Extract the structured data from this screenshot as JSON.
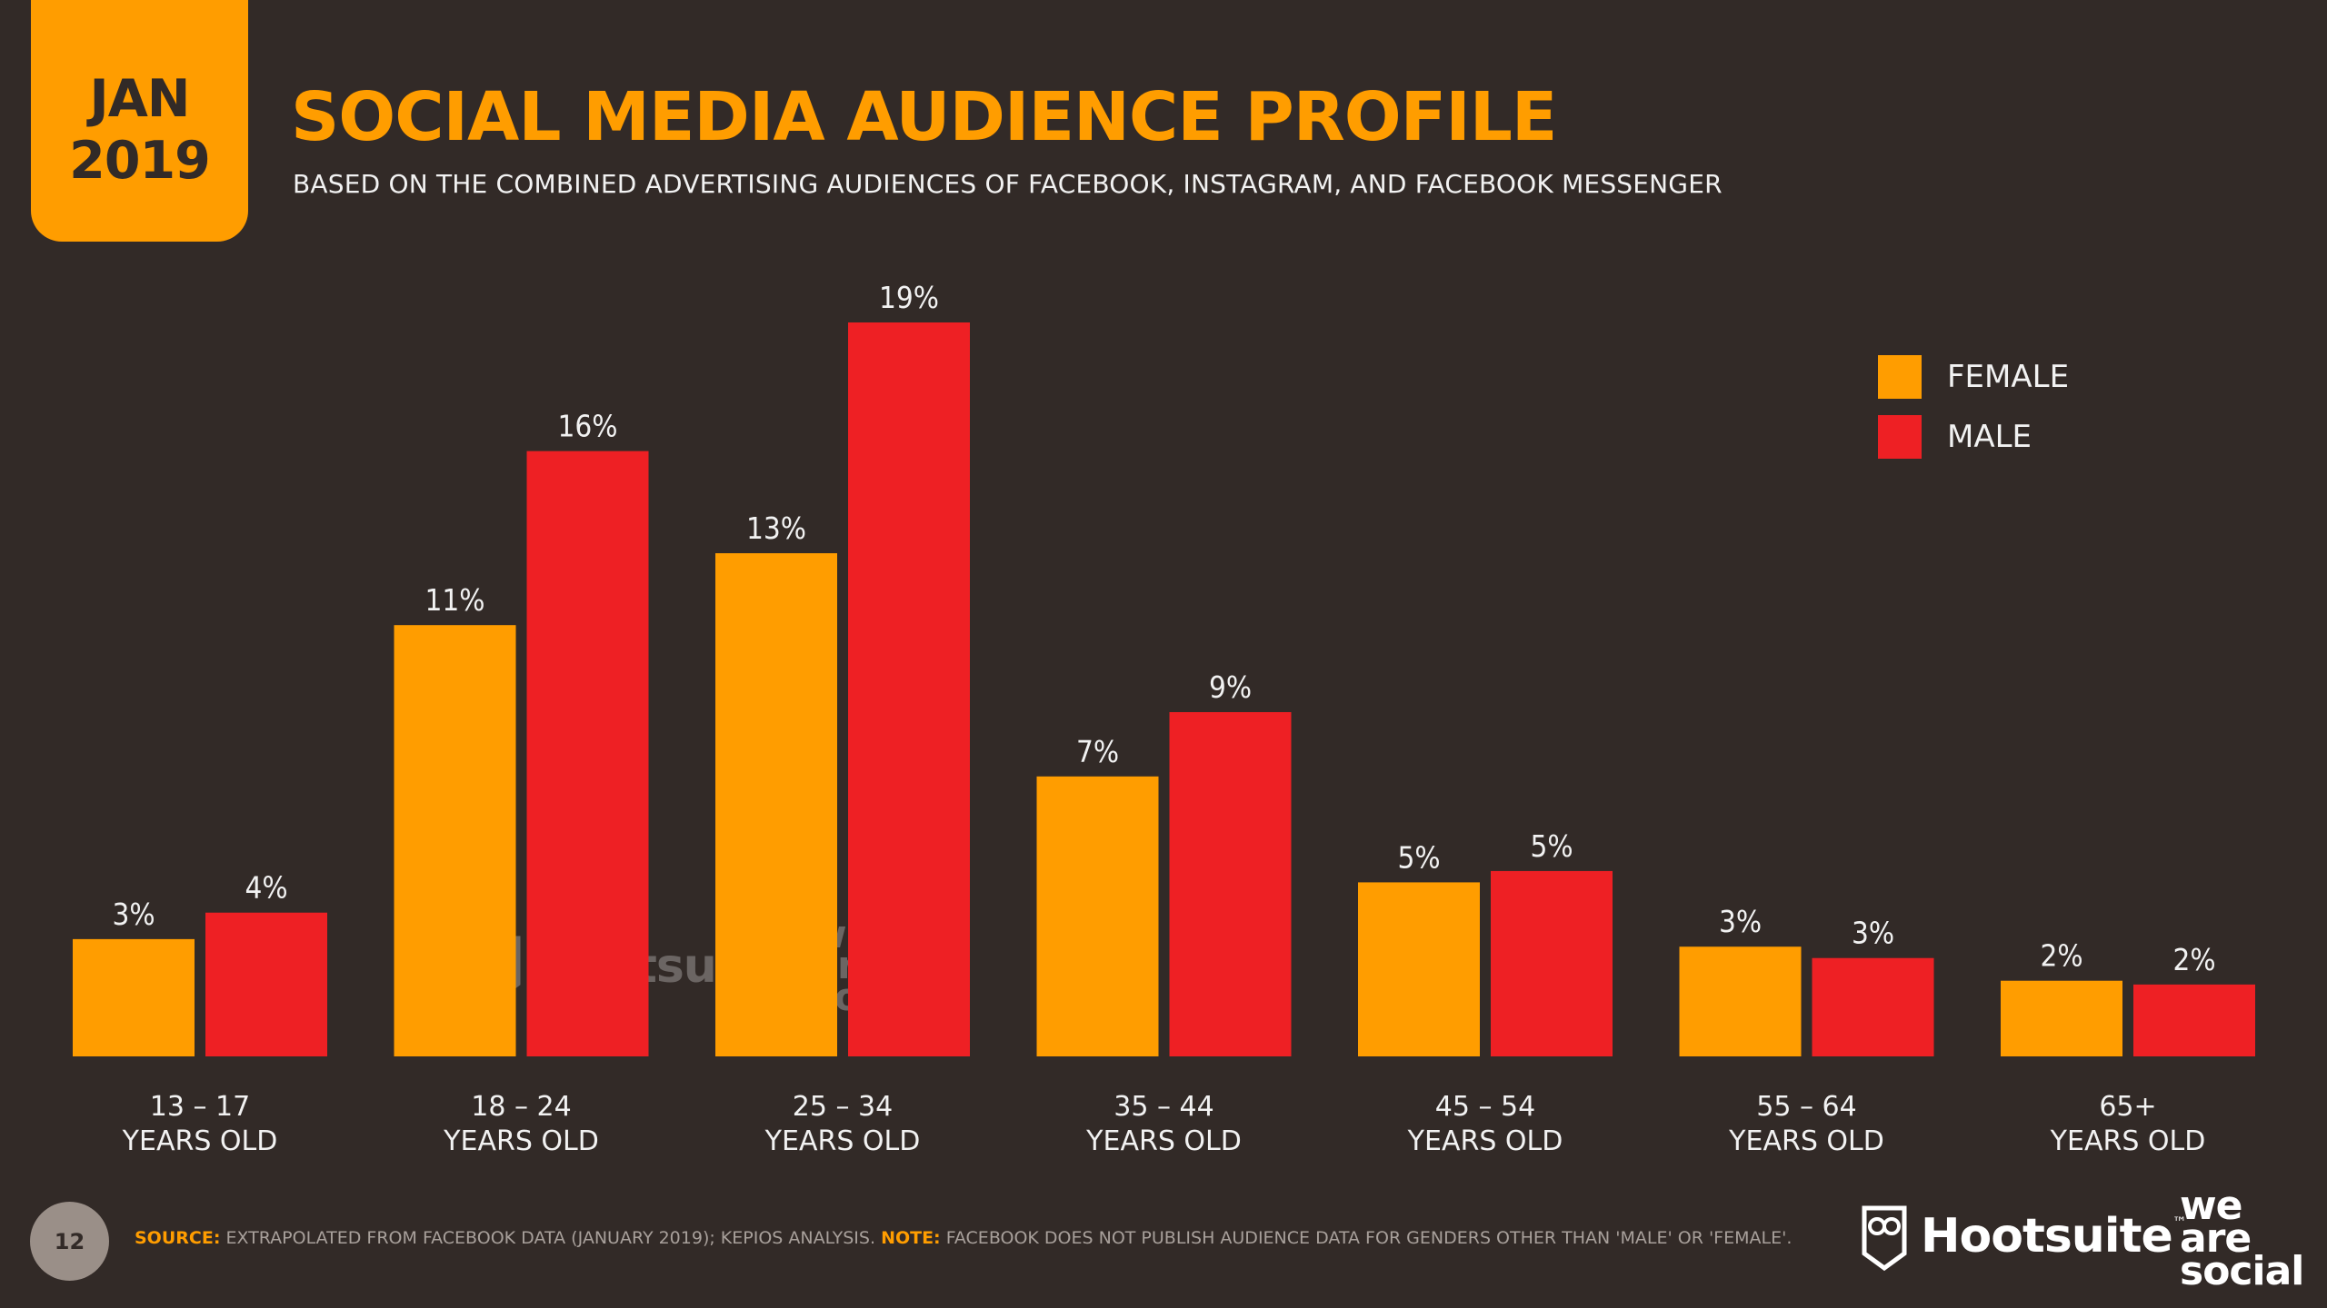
{
  "header": {
    "date_line1": "JAN",
    "date_line2": "2019",
    "title": "SOCIAL MEDIA AUDIENCE PROFILE",
    "subtitle": "BASED ON THE COMBINED ADVERTISING AUDIENCES OF FACEBOOK, INSTAGRAM, AND FACEBOOK MESSENGER"
  },
  "colors": {
    "background": "#322a27",
    "female": "#ff9d00",
    "male": "#ee2024"
  },
  "chart_data": {
    "type": "bar",
    "title": "SOCIAL MEDIA AUDIENCE PROFILE",
    "subtitle": "BASED ON THE COMBINED ADVERTISING AUDIENCES OF FACEBOOK, INSTAGRAM, AND FACEBOOK MESSENGER",
    "categories": [
      [
        "13 – 17",
        "YEARS OLD"
      ],
      [
        "18 – 24",
        "YEARS OLD"
      ],
      [
        "25 – 34",
        "YEARS OLD"
      ],
      [
        "35 – 44",
        "YEARS OLD"
      ],
      [
        "45 – 54",
        "YEARS OLD"
      ],
      [
        "55 – 64",
        "YEARS OLD"
      ],
      [
        "65+",
        "YEARS OLD"
      ]
    ],
    "series": [
      {
        "name": "FEMALE",
        "values": [
          3.1,
          11.4,
          13.3,
          7.4,
          4.6,
          2.9,
          2.0
        ],
        "labels": [
          "3%",
          "11%",
          "13%",
          "7%",
          "5%",
          "3%",
          "2%"
        ]
      },
      {
        "name": "MALE",
        "values": [
          3.8,
          16.0,
          19.4,
          9.1,
          4.9,
          2.6,
          1.9
        ],
        "labels": [
          "4%",
          "16%",
          "19%",
          "9%",
          "5%",
          "3%",
          "2%"
        ]
      }
    ],
    "ylim": [
      0,
      20
    ],
    "grid": false,
    "legend_position": "top-right",
    "xlabel": "",
    "ylabel": ""
  },
  "legend": [
    {
      "label": "FEMALE",
      "color": "#ff9d00"
    },
    {
      "label": "MALE",
      "color": "#ee2024"
    }
  ],
  "footer": {
    "page_number": "12",
    "source_label": "SOURCE:",
    "source_text": " EXTRAPOLATED FROM FACEBOOK DATA (JANUARY 2019); KEPIOS ANALYSIS. ",
    "note_label": "NOTE:",
    "note_text": " FACEBOOK DOES NOT PUBLISH AUDIENCE DATA FOR GENDERS OTHER THAN 'MALE' OR 'FEMALE'.",
    "brand_hootsuite": "Hootsuite",
    "brand_tm": "™",
    "brand_was_1": "we",
    "brand_was_2": "are",
    "brand_was_3": "social"
  },
  "icons": {
    "hootsuite_logo": "owl-icon"
  }
}
